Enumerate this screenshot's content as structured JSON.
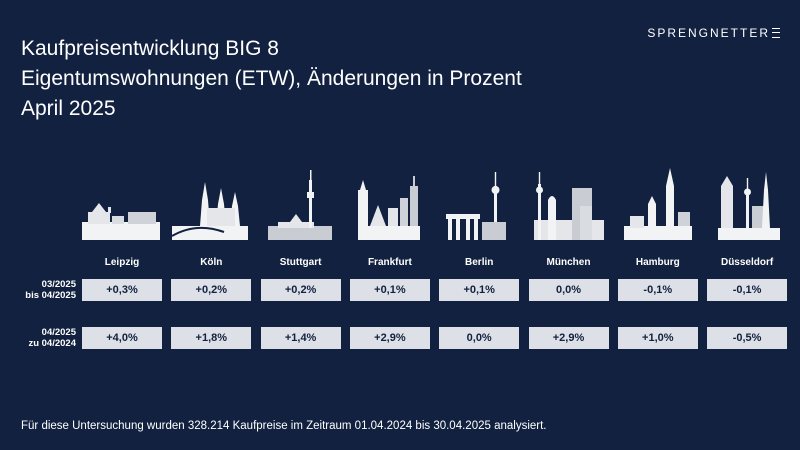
{
  "header": {
    "title": "Kaufpreisentwicklung BIG 8",
    "subtitle": "Eigentumswohnungen (ETW), Änderungen in Prozent",
    "date": "April 2025"
  },
  "brand": {
    "logo_text": "SPRENGNETTER"
  },
  "colors": {
    "background": "#12213f",
    "box": "#dde0e6",
    "box_text": "#12213f",
    "skyline_light": "#f2f3f5",
    "skyline_mid": "#c9ccd3"
  },
  "chart_data": {
    "type": "table",
    "title": "Kaufpreisentwicklung BIG 8",
    "categories": [
      "Leipzig",
      "Köln",
      "Stuttgart",
      "Frankfurt",
      "Berlin",
      "München",
      "Hamburg",
      "Düsseldorf"
    ],
    "series": [
      {
        "name": "03/2025 bis 04/2025",
        "label_lines": [
          "03/2025",
          "bis 04/2025"
        ],
        "values": [
          0.3,
          0.2,
          0.2,
          0.1,
          0.1,
          0.0,
          -0.1,
          -0.1
        ],
        "labels": [
          "+0,3%",
          "+0,2%",
          "+0,2%",
          "+0,1%",
          "+0,1%",
          "0,0%",
          "-0,1%",
          "-0,1%"
        ]
      },
      {
        "name": "04/2025 zu 04/2024",
        "label_lines": [
          "04/2025",
          "zu 04/2024"
        ],
        "values": [
          4.0,
          1.8,
          1.4,
          2.9,
          0.0,
          2.9,
          1.0,
          -0.5
        ],
        "labels": [
          "+4,0%",
          "+1,8%",
          "+1,4%",
          "+2,9%",
          "0,0%",
          "+2,9%",
          "+1,0%",
          "-0,5%"
        ]
      }
    ]
  },
  "footnote": "Für diese Untersuchung wurden 328.214 Kaufpreise im Zeitraum 01.04.2024 bis 30.04.2025 analysiert."
}
